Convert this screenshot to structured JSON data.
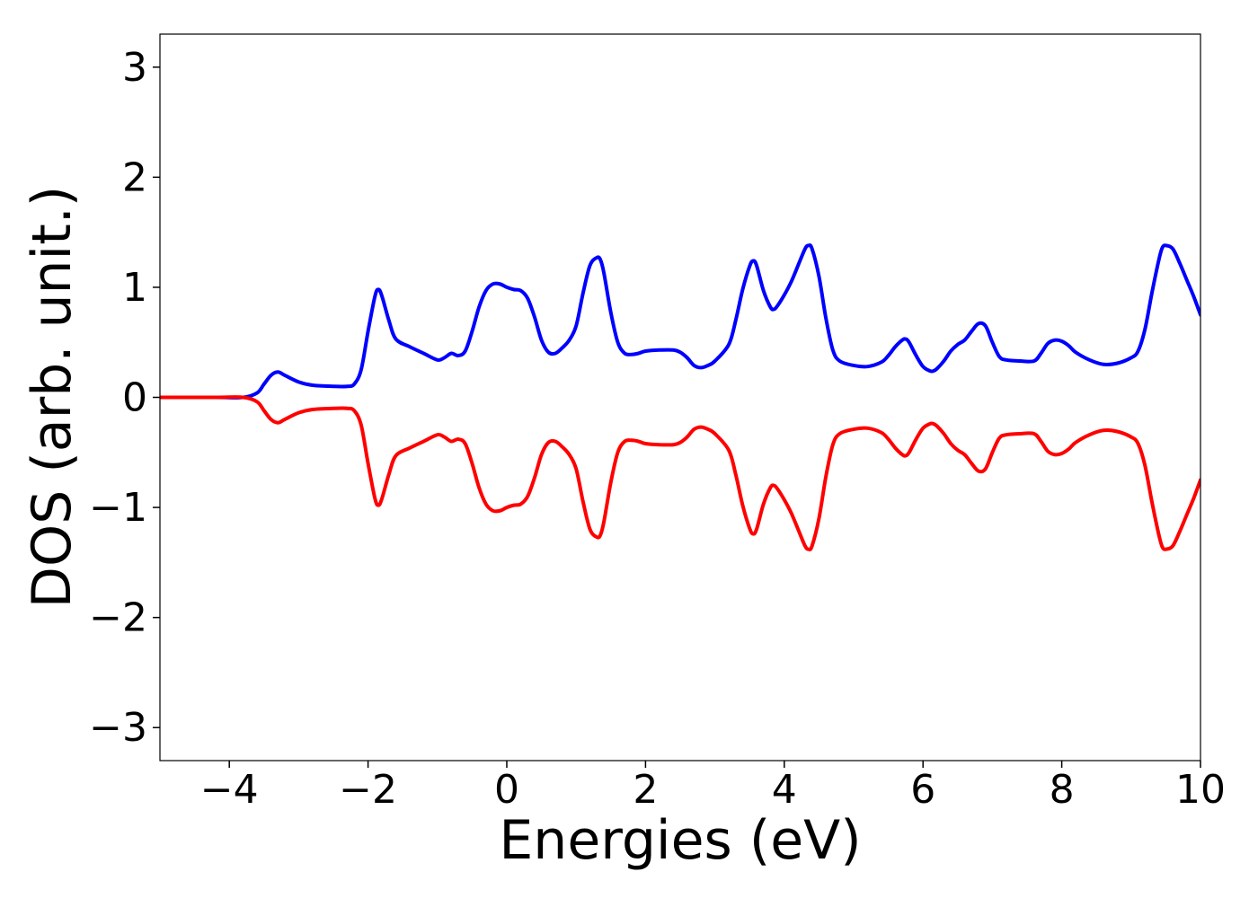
{
  "chart_data": {
    "type": "line",
    "xlabel": "Energies (eV)",
    "ylabel": "DOS (arb. unit.)",
    "xlim": [
      -5,
      10
    ],
    "ylim": [
      -3.3,
      3.3
    ],
    "xticks": [
      -4,
      -2,
      0,
      2,
      4,
      6,
      8,
      10
    ],
    "xtick_labels": [
      "−4",
      "−2",
      "0",
      "2",
      "4",
      "6",
      "8",
      "10"
    ],
    "yticks": [
      -3,
      -2,
      -1,
      0,
      1,
      2,
      3
    ],
    "ytick_labels": [
      "−3",
      "−2",
      "−1",
      "0",
      "1",
      "2",
      "3"
    ],
    "grid": false,
    "series": [
      {
        "color": "#0000ff",
        "x": [
          -5,
          -4.2,
          -3.8,
          -3.6,
          -3.5,
          -3.4,
          -3.3,
          -3.2,
          -3.0,
          -2.8,
          -2.5,
          -2.3,
          -2.2,
          -2.1,
          -2.0,
          -1.9,
          -1.85,
          -1.8,
          -1.7,
          -1.6,
          -1.4,
          -1.2,
          -1.0,
          -0.9,
          -0.8,
          -0.7,
          -0.6,
          -0.5,
          -0.4,
          -0.3,
          -0.2,
          -0.1,
          0.0,
          0.1,
          0.2,
          0.3,
          0.4,
          0.5,
          0.6,
          0.7,
          0.8,
          0.9,
          1.0,
          1.1,
          1.2,
          1.3,
          1.35,
          1.4,
          1.5,
          1.6,
          1.7,
          1.8,
          1.9,
          2.0,
          2.2,
          2.4,
          2.5,
          2.6,
          2.7,
          2.8,
          2.9,
          3.0,
          3.2,
          3.3,
          3.4,
          3.5,
          3.55,
          3.6,
          3.7,
          3.8,
          3.85,
          3.9,
          4.0,
          4.1,
          4.2,
          4.3,
          4.35,
          4.4,
          4.5,
          4.6,
          4.7,
          4.8,
          5.0,
          5.2,
          5.4,
          5.5,
          5.6,
          5.7,
          5.75,
          5.8,
          5.9,
          6.0,
          6.1,
          6.15,
          6.2,
          6.3,
          6.4,
          6.5,
          6.6,
          6.7,
          6.8,
          6.9,
          7.0,
          7.1,
          7.2,
          7.4,
          7.6,
          7.7,
          7.8,
          7.9,
          8.0,
          8.1,
          8.2,
          8.4,
          8.6,
          8.8,
          9.0,
          9.1,
          9.2,
          9.3,
          9.4,
          9.45,
          9.5,
          9.6,
          9.7,
          9.8,
          9.9,
          10.0
        ],
        "y": [
          0,
          0,
          0,
          0.04,
          0.12,
          0.2,
          0.23,
          0.2,
          0.14,
          0.11,
          0.1,
          0.1,
          0.12,
          0.25,
          0.6,
          0.92,
          0.98,
          0.92,
          0.7,
          0.53,
          0.46,
          0.4,
          0.34,
          0.36,
          0.4,
          0.38,
          0.42,
          0.6,
          0.82,
          0.97,
          1.03,
          1.03,
          1.0,
          0.98,
          0.97,
          0.9,
          0.73,
          0.52,
          0.41,
          0.4,
          0.45,
          0.52,
          0.65,
          0.95,
          1.2,
          1.27,
          1.25,
          1.13,
          0.77,
          0.5,
          0.4,
          0.39,
          0.4,
          0.42,
          0.43,
          0.43,
          0.41,
          0.36,
          0.29,
          0.27,
          0.29,
          0.33,
          0.48,
          0.7,
          0.98,
          1.19,
          1.24,
          1.2,
          0.97,
          0.82,
          0.8,
          0.83,
          0.93,
          1.05,
          1.2,
          1.35,
          1.38,
          1.35,
          1.1,
          0.72,
          0.43,
          0.33,
          0.29,
          0.28,
          0.32,
          0.38,
          0.46,
          0.52,
          0.53,
          0.5,
          0.38,
          0.28,
          0.24,
          0.24,
          0.26,
          0.33,
          0.42,
          0.48,
          0.52,
          0.6,
          0.67,
          0.65,
          0.5,
          0.37,
          0.34,
          0.33,
          0.33,
          0.4,
          0.49,
          0.52,
          0.51,
          0.47,
          0.41,
          0.34,
          0.3,
          0.31,
          0.36,
          0.42,
          0.62,
          0.95,
          1.25,
          1.36,
          1.38,
          1.35,
          1.22,
          1.07,
          0.92,
          0.75
        ]
      },
      {
        "color": "#ff0000",
        "x": [
          -5,
          -4.2,
          -3.8,
          -3.6,
          -3.5,
          -3.4,
          -3.3,
          -3.2,
          -3.0,
          -2.8,
          -2.5,
          -2.3,
          -2.2,
          -2.1,
          -2.0,
          -1.9,
          -1.85,
          -1.8,
          -1.7,
          -1.6,
          -1.4,
          -1.2,
          -1.0,
          -0.9,
          -0.8,
          -0.7,
          -0.6,
          -0.5,
          -0.4,
          -0.3,
          -0.2,
          -0.1,
          0.0,
          0.1,
          0.2,
          0.3,
          0.4,
          0.5,
          0.6,
          0.7,
          0.8,
          0.9,
          1.0,
          1.1,
          1.2,
          1.3,
          1.35,
          1.4,
          1.5,
          1.6,
          1.7,
          1.8,
          1.9,
          2.0,
          2.2,
          2.4,
          2.5,
          2.6,
          2.7,
          2.8,
          2.9,
          3.0,
          3.2,
          3.3,
          3.4,
          3.5,
          3.55,
          3.6,
          3.7,
          3.8,
          3.85,
          3.9,
          4.0,
          4.1,
          4.2,
          4.3,
          4.35,
          4.4,
          4.5,
          4.6,
          4.7,
          4.8,
          5.0,
          5.2,
          5.4,
          5.5,
          5.6,
          5.7,
          5.75,
          5.8,
          5.9,
          6.0,
          6.1,
          6.15,
          6.2,
          6.3,
          6.4,
          6.5,
          6.6,
          6.7,
          6.8,
          6.9,
          7.0,
          7.1,
          7.2,
          7.4,
          7.6,
          7.7,
          7.8,
          7.9,
          8.0,
          8.1,
          8.2,
          8.4,
          8.6,
          8.8,
          9.0,
          9.1,
          9.2,
          9.3,
          9.4,
          9.45,
          9.5,
          9.6,
          9.7,
          9.8,
          9.9,
          10.0
        ],
        "y": [
          0,
          0,
          0,
          -0.04,
          -0.12,
          -0.2,
          -0.23,
          -0.2,
          -0.14,
          -0.11,
          -0.1,
          -0.1,
          -0.12,
          -0.25,
          -0.6,
          -0.92,
          -0.98,
          -0.92,
          -0.7,
          -0.53,
          -0.46,
          -0.4,
          -0.34,
          -0.36,
          -0.4,
          -0.38,
          -0.42,
          -0.6,
          -0.82,
          -0.97,
          -1.03,
          -1.03,
          -1.0,
          -0.98,
          -0.97,
          -0.9,
          -0.73,
          -0.52,
          -0.41,
          -0.4,
          -0.45,
          -0.52,
          -0.65,
          -0.95,
          -1.2,
          -1.27,
          -1.25,
          -1.13,
          -0.77,
          -0.5,
          -0.4,
          -0.39,
          -0.4,
          -0.42,
          -0.43,
          -0.43,
          -0.41,
          -0.36,
          -0.29,
          -0.27,
          -0.29,
          -0.33,
          -0.48,
          -0.7,
          -0.98,
          -1.19,
          -1.24,
          -1.2,
          -0.97,
          -0.82,
          -0.8,
          -0.83,
          -0.93,
          -1.05,
          -1.2,
          -1.35,
          -1.38,
          -1.35,
          -1.1,
          -0.72,
          -0.43,
          -0.33,
          -0.29,
          -0.28,
          -0.32,
          -0.38,
          -0.46,
          -0.52,
          -0.53,
          -0.5,
          -0.38,
          -0.28,
          -0.24,
          -0.24,
          -0.26,
          -0.33,
          -0.42,
          -0.48,
          -0.52,
          -0.6,
          -0.67,
          -0.65,
          -0.5,
          -0.37,
          -0.34,
          -0.33,
          -0.33,
          -0.4,
          -0.49,
          -0.52,
          -0.51,
          -0.47,
          -0.41,
          -0.34,
          -0.3,
          -0.31,
          -0.36,
          -0.42,
          -0.62,
          -0.95,
          -1.25,
          -1.36,
          -1.38,
          -1.35,
          -1.22,
          -1.07,
          -0.92,
          -0.75
        ]
      }
    ]
  }
}
